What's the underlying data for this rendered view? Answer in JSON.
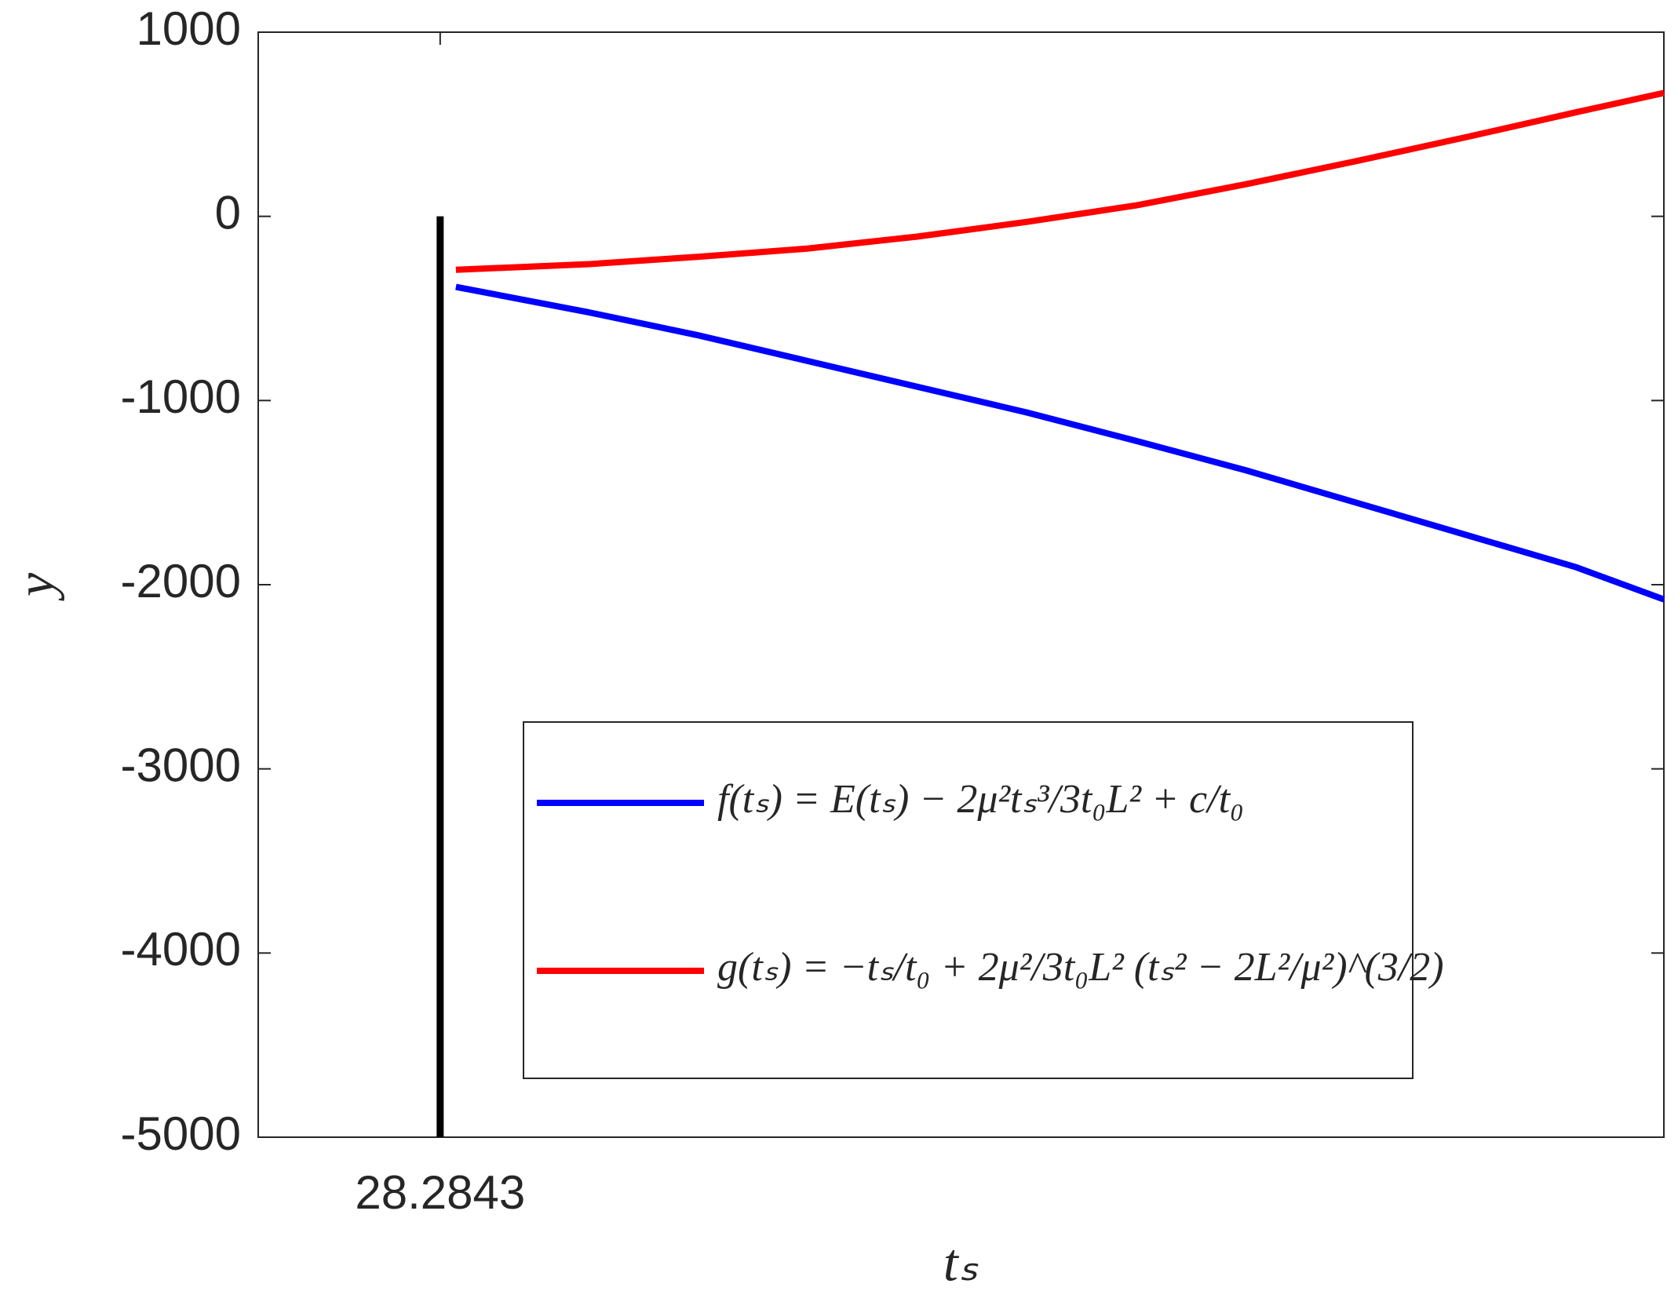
{
  "chart_data": {
    "type": "line",
    "xlabel": "tₛ",
    "ylabel": "y",
    "x": [
      29,
      35,
      40,
      45,
      50,
      55,
      60,
      65,
      70,
      75,
      80,
      84
    ],
    "series": [
      {
        "name": "f(tₛ) = E(tₛ) − 2μ²tₛ³/3t₀L² + c/t₀",
        "color": "#0000ff",
        "values": [
          -383,
          -520,
          -645,
          -785,
          -925,
          -1065,
          -1220,
          -1380,
          -1555,
          -1730,
          -1905,
          -2080
        ]
      },
      {
        "name": "g(tₛ) = −tₛ/t₀ + 2μ²/3t₀L² (tₛ² − 2L²/μ²)^(3/2)",
        "color": "#ff0000",
        "values": [
          -290,
          -260,
          -220,
          -175,
          -110,
          -30,
          60,
          175,
          300,
          430,
          565,
          670
        ]
      }
    ],
    "vline": {
      "x": 28.2843,
      "ymin": -5000,
      "ymax": 0,
      "color": "#000000"
    },
    "xlim": [
      20,
      84
    ],
    "xticks": [
      28.2843
    ],
    "ylim": [
      -5000,
      1000
    ],
    "yticks": [
      1000,
      0,
      -1000,
      -2000,
      -3000,
      -4000,
      -5000
    ],
    "grid": false,
    "legend": "lower right"
  }
}
